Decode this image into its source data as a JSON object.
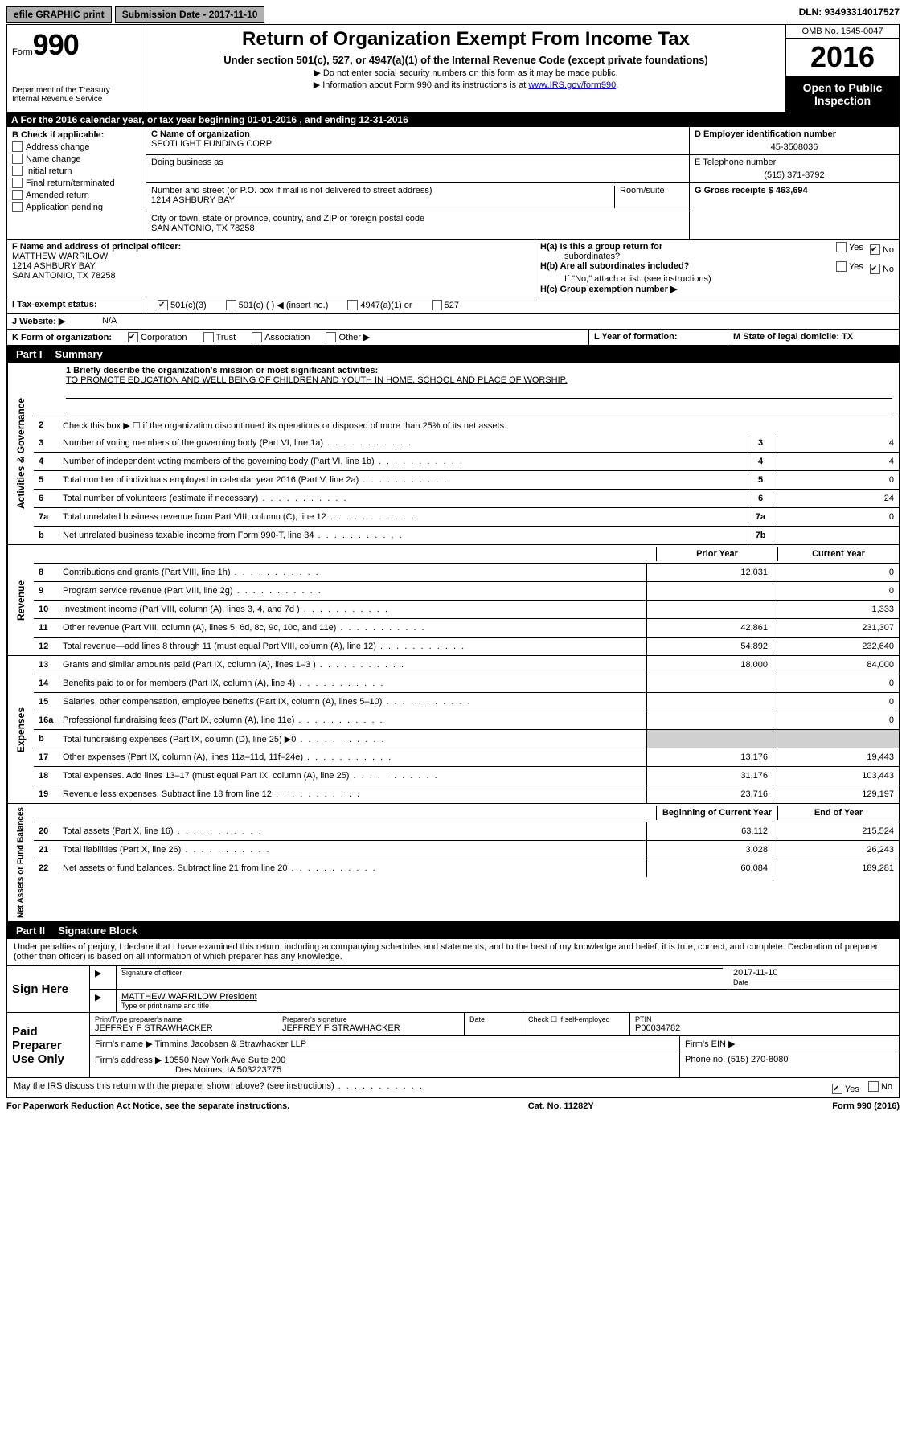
{
  "topbar": {
    "efile": "efile GRAPHIC print",
    "submission": "Submission Date - 2017-11-10",
    "dln": "DLN: 93493314017527"
  },
  "header": {
    "form_prefix": "Form",
    "form_number": "990",
    "dept1": "Department of the Treasury",
    "dept2": "Internal Revenue Service",
    "title": "Return of Organization Exempt From Income Tax",
    "subtitle": "Under section 501(c), 527, or 4947(a)(1) of the Internal Revenue Code (except private foundations)",
    "note1": "▶ Do not enter social security numbers on this form as it may be made public.",
    "note2_pre": "▶ Information about Form 990 and its instructions is at ",
    "note2_link": "www.IRS.gov/form990",
    "omb": "OMB No. 1545-0047",
    "year": "2016",
    "inspection": "Open to Public Inspection"
  },
  "row_a": "A  For the 2016 calendar year, or tax year beginning 01-01-2016   , and ending 12-31-2016",
  "b": {
    "label": "B Check if applicable:",
    "opts": [
      "Address change",
      "Name change",
      "Initial return",
      "Final return/terminated",
      "Amended return",
      "Application pending"
    ]
  },
  "c": {
    "name_lbl": "C Name of organization",
    "name": "SPOTLIGHT FUNDING CORP",
    "dba_lbl": "Doing business as",
    "street_lbl": "Number and street (or P.O. box if mail is not delivered to street address)",
    "room_lbl": "Room/suite",
    "street": "1214 ASHBURY BAY",
    "city_lbl": "City or town, state or province, country, and ZIP or foreign postal code",
    "city": "SAN ANTONIO, TX  78258"
  },
  "d": {
    "ein_lbl": "D Employer identification number",
    "ein": "45-3508036",
    "phone_lbl": "E Telephone number",
    "phone": "(515) 371-8792",
    "gross_lbl": "G Gross receipts $ 463,694"
  },
  "f": {
    "lbl": "F Name and address of principal officer:",
    "l1": "MATTHEW WARRILOW",
    "l2": "1214 ASHBURY BAY",
    "l3": "SAN ANTONIO, TX  78258"
  },
  "h": {
    "a_lbl": "H(a)  Is this a group return for",
    "a_sub": "subordinates?",
    "b_lbl": "H(b) Are all subordinates included?",
    "b_note": "If \"No,\" attach a list. (see instructions)",
    "c_lbl": "H(c) Group exemption number ▶"
  },
  "i": {
    "lbl": "I  Tax-exempt status:",
    "o1": "501(c)(3)",
    "o2": "501(c) (  ) ◀ (insert no.)",
    "o3": "4947(a)(1) or",
    "o4": "527"
  },
  "j": {
    "lbl": "J  Website: ▶",
    "val": "N/A"
  },
  "k": {
    "lbl": "K Form of organization:",
    "o1": "Corporation",
    "o2": "Trust",
    "o3": "Association",
    "o4": "Other ▶"
  },
  "l": {
    "lbl": "L Year of formation:"
  },
  "m": {
    "lbl": "M State of legal domicile: TX"
  },
  "part1": {
    "label": "Part I",
    "title": "Summary"
  },
  "summary": {
    "governance_label": "Activities & Governance",
    "revenue_label": "Revenue",
    "expenses_label": "Expenses",
    "netassets_label": "Net Assets or Fund Balances",
    "line1_lbl": "1 Briefly describe the organization's mission or most significant activities:",
    "line1_val": "TO PROMOTE EDUCATION AND WELL BEING OF CHILDREN AND YOUTH IN HOME, SCHOOL AND PLACE OF WORSHIP.",
    "line2": "Check this box ▶ ☐  if the organization discontinued its operations or disposed of more than 25% of its net assets.",
    "rows_gov": [
      {
        "n": "3",
        "t": "Number of voting members of the governing body (Part VI, line 1a)",
        "b": "3",
        "v": "4"
      },
      {
        "n": "4",
        "t": "Number of independent voting members of the governing body (Part VI, line 1b)",
        "b": "4",
        "v": "4"
      },
      {
        "n": "5",
        "t": "Total number of individuals employed in calendar year 2016 (Part V, line 2a)",
        "b": "5",
        "v": "0"
      },
      {
        "n": "6",
        "t": "Total number of volunteers (estimate if necessary)",
        "b": "6",
        "v": "24"
      },
      {
        "n": "7a",
        "t": "Total unrelated business revenue from Part VIII, column (C), line 12",
        "b": "7a",
        "v": "0"
      },
      {
        "n": "b",
        "t": "Net unrelated business taxable income from Form 990-T, line 34",
        "b": "7b",
        "v": ""
      }
    ],
    "col_headers": {
      "prior": "Prior Year",
      "current": "Current Year"
    },
    "rows_rev": [
      {
        "n": "8",
        "t": "Contributions and grants (Part VIII, line 1h)",
        "p": "12,031",
        "c": "0"
      },
      {
        "n": "9",
        "t": "Program service revenue (Part VIII, line 2g)",
        "p": "",
        "c": "0"
      },
      {
        "n": "10",
        "t": "Investment income (Part VIII, column (A), lines 3, 4, and 7d )",
        "p": "",
        "c": "1,333"
      },
      {
        "n": "11",
        "t": "Other revenue (Part VIII, column (A), lines 5, 6d, 8c, 9c, 10c, and 11e)",
        "p": "42,861",
        "c": "231,307"
      },
      {
        "n": "12",
        "t": "Total revenue—add lines 8 through 11 (must equal Part VIII, column (A), line 12)",
        "p": "54,892",
        "c": "232,640"
      }
    ],
    "rows_exp": [
      {
        "n": "13",
        "t": "Grants and similar amounts paid (Part IX, column (A), lines 1–3 )",
        "p": "18,000",
        "c": "84,000"
      },
      {
        "n": "14",
        "t": "Benefits paid to or for members (Part IX, column (A), line 4)",
        "p": "",
        "c": "0"
      },
      {
        "n": "15",
        "t": "Salaries, other compensation, employee benefits (Part IX, column (A), lines 5–10)",
        "p": "",
        "c": "0"
      },
      {
        "n": "16a",
        "t": "Professional fundraising fees (Part IX, column (A), line 11e)",
        "p": "",
        "c": "0"
      },
      {
        "n": "b",
        "t": "Total fundraising expenses (Part IX, column (D), line 25) ▶0",
        "p": "shaded",
        "c": "shaded"
      },
      {
        "n": "17",
        "t": "Other expenses (Part IX, column (A), lines 11a–11d, 11f–24e)",
        "p": "13,176",
        "c": "19,443"
      },
      {
        "n": "18",
        "t": "Total expenses. Add lines 13–17 (must equal Part IX, column (A), line 25)",
        "p": "31,176",
        "c": "103,443"
      },
      {
        "n": "19",
        "t": "Revenue less expenses. Subtract line 18 from line 12",
        "p": "23,716",
        "c": "129,197"
      }
    ],
    "col_headers2": {
      "begin": "Beginning of Current Year",
      "end": "End of Year"
    },
    "rows_net": [
      {
        "n": "20",
        "t": "Total assets (Part X, line 16)",
        "p": "63,112",
        "c": "215,524"
      },
      {
        "n": "21",
        "t": "Total liabilities (Part X, line 26)",
        "p": "3,028",
        "c": "26,243"
      },
      {
        "n": "22",
        "t": "Net assets or fund balances. Subtract line 21 from line 20",
        "p": "60,084",
        "c": "189,281"
      }
    ]
  },
  "part2": {
    "label": "Part II",
    "title": "Signature Block"
  },
  "sig": {
    "perjury": "Under penalties of perjury, I declare that I have examined this return, including accompanying schedules and statements, and to the best of my knowledge and belief, it is true, correct, and complete. Declaration of preparer (other than officer) is based on all information of which preparer has any knowledge.",
    "sign_here": "Sign Here",
    "officer_sig_lbl": "Signature of officer",
    "date_lbl": "Date",
    "date_val": "2017-11-10",
    "officer_name": "MATTHEW WARRILOW President",
    "officer_name_lbl": "Type or print name and title",
    "paid_prep": "Paid Preparer Use Only",
    "prep_name_lbl": "Print/Type preparer's name",
    "prep_name": "JEFFREY F STRAWHACKER",
    "prep_sig_lbl": "Preparer's signature",
    "prep_sig": "JEFFREY F STRAWHACKER",
    "prep_date_lbl": "Date",
    "self_emp": "Check ☐ if self-employed",
    "ptin_lbl": "PTIN",
    "ptin": "P00034782",
    "firm_name_lbl": "Firm's name    ▶",
    "firm_name": "Timmins Jacobsen & Strawhacker LLP",
    "firm_ein_lbl": "Firm's EIN ▶",
    "firm_addr_lbl": "Firm's address ▶",
    "firm_addr1": "10550 New York Ave Suite 200",
    "firm_addr2": "Des Moines, IA  503223775",
    "firm_phone_lbl": "Phone no. (515) 270-8080",
    "discuss": "May the IRS discuss this return with the preparer shown above? (see instructions)",
    "yes": "Yes",
    "no": "No"
  },
  "footer": {
    "left": "For Paperwork Reduction Act Notice, see the separate instructions.",
    "mid": "Cat. No. 11282Y",
    "right": "Form 990 (2016)"
  }
}
